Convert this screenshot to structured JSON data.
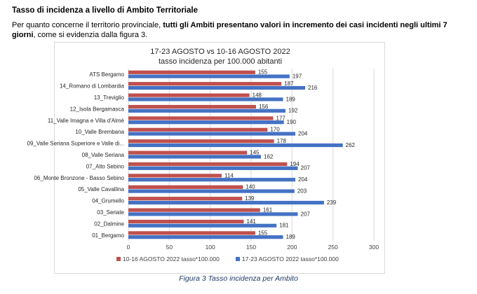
{
  "document": {
    "heading": "Tasso di incidenza a livello di Ambito Territoriale",
    "intro_before": "Per quanto concerne il territorio provinciale, ",
    "intro_bold": "tutti gli Ambiti presentano valori in incremento dei casi incidenti negli ultimi 7 giorni",
    "intro_after": ", come si evidenzia dalla figura 3.",
    "caption": "Figura 3 Tasso incidenza per Ambito"
  },
  "chart_data": {
    "type": "bar",
    "orientation": "horizontal",
    "title": "17-23 AGOSTO vs 10-16 AGOSTO 2022",
    "subtitle": "tasso incidenza per 100.000 abitanti",
    "categories": [
      "ATS Bergamo",
      "14_Romano di Lombardia",
      "13_Treviglio",
      "12_Isola Bergamasca",
      "11_Valle Imagna e Villa d'Almè",
      "10_Valle Brembana",
      "09_Valle Seriana Superiore e Valle di...",
      "08_Valle Seriana",
      "07_Alto Sebino",
      "06_Monte Bronzone - Basso Sebino",
      "05_Valle Cavallina",
      "04_Grumello",
      "03_Seriate",
      "02_Dalmine",
      "01_Bergamo"
    ],
    "series": [
      {
        "name": "10-16 AGOSTO 2022 tasso*100.000",
        "color": "#c0504d",
        "values": [
          155,
          187,
          148,
          156,
          177,
          170,
          178,
          145,
          194,
          114,
          140,
          139,
          161,
          141,
          155
        ]
      },
      {
        "name": "17-23 AGOSTO 2022 tasso*100.000",
        "color": "#4472c4",
        "values": [
          197,
          216,
          189,
          192,
          190,
          204,
          262,
          162,
          207,
          204,
          203,
          239,
          207,
          181,
          189
        ]
      }
    ],
    "xlim": [
      0,
      300
    ],
    "xticks": [
      0,
      50,
      100,
      150,
      200,
      250,
      300
    ],
    "grid": true,
    "legend": "bottom"
  }
}
